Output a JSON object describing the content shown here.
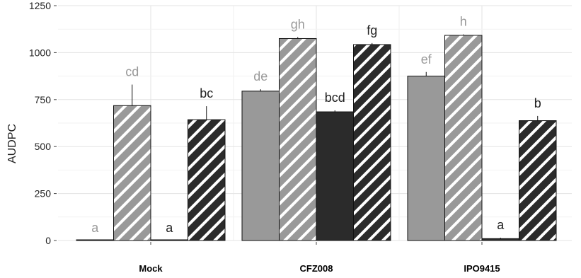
{
  "chart_data": {
    "type": "bar",
    "ylabel": "AUDPC",
    "xlabel": "",
    "ylim": [
      0,
      1250
    ],
    "yticks": [
      0,
      250,
      500,
      750,
      1000,
      1250
    ],
    "grid": true,
    "categories": [
      "Mock",
      "CFZ008",
      "IPO9415"
    ],
    "series": [
      {
        "fill": "#999999",
        "hatch": false,
        "values": [
          0,
          795,
          875
        ],
        "errors": [
          0,
          10,
          22
        ],
        "sig_labels": [
          "a",
          "de",
          "ef"
        ],
        "label_color": "#999999"
      },
      {
        "fill": "#999999",
        "hatch": true,
        "values": [
          718,
          1075,
          1092
        ],
        "errors": [
          112,
          8,
          5
        ],
        "sig_labels": [
          "cd",
          "gh",
          "h"
        ],
        "label_color": "#999999"
      },
      {
        "fill": "#2b2b2b",
        "hatch": false,
        "values": [
          0,
          685,
          10
        ],
        "errors": [
          0,
          8,
          5
        ],
        "sig_labels": [
          "a",
          "bcd",
          "a"
        ],
        "label_color": "#222222"
      },
      {
        "fill": "#2b2b2b",
        "hatch": true,
        "values": [
          643,
          1043,
          638
        ],
        "errors": [
          72,
          8,
          25
        ],
        "sig_labels": [
          "bc",
          "fg",
          "b"
        ],
        "label_color": "#222222"
      }
    ]
  }
}
